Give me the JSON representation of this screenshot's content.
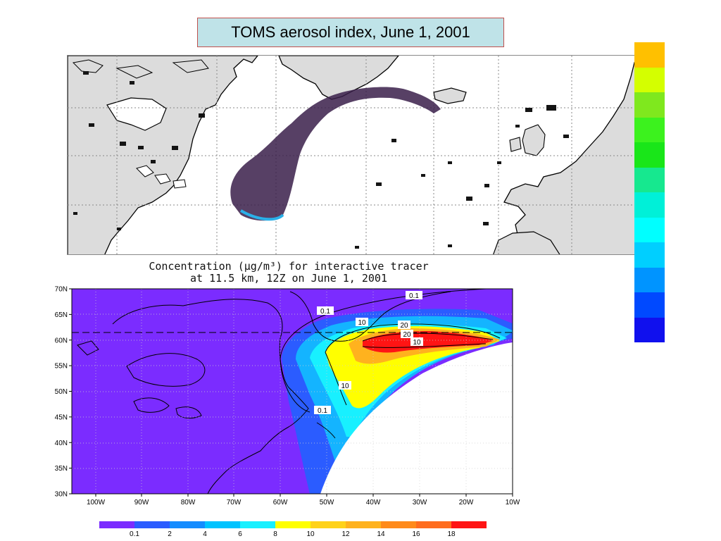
{
  "top_title": "TOMS aerosol index, June 1, 2001",
  "top_scale_colors": [
    "#ffc000",
    "#d4ff00",
    "#7fe81e",
    "#3cf21e",
    "#19e619",
    "#16e88f",
    "#00f0d8",
    "#00ffff",
    "#00cfff",
    "#0094ff",
    "#0049ff",
    "#1010ee"
  ],
  "concentration": {
    "title_line1": "Concentration (μg/m³) for interactive tracer",
    "title_line2": "at 11.5 km, 12Z on June 1, 2001"
  },
  "lat_labels": [
    "70N",
    "65N",
    "60N",
    "55N",
    "50N",
    "45N",
    "40N",
    "35N",
    "30N"
  ],
  "lon_labels": [
    "100W",
    "90W",
    "80W",
    "70W",
    "60W",
    "50W",
    "40W",
    "30W",
    "20W",
    "10W"
  ],
  "contour_labels": [
    "0.1",
    "0.1",
    "0.1",
    "10",
    "10",
    "10",
    "20",
    "20"
  ],
  "colorbar": {
    "colors": [
      "#7b2cff",
      "#2b5cff",
      "#148cff",
      "#00c3ff",
      "#18f0ff",
      "#ffff00",
      "#ffd21a",
      "#ffb21e",
      "#ff8a1a",
      "#ff6c1e",
      "#ff1414"
    ],
    "labels": [
      "0.1",
      "2",
      "4",
      "6",
      "8",
      "10",
      "12",
      "14",
      "16",
      "18"
    ]
  }
}
